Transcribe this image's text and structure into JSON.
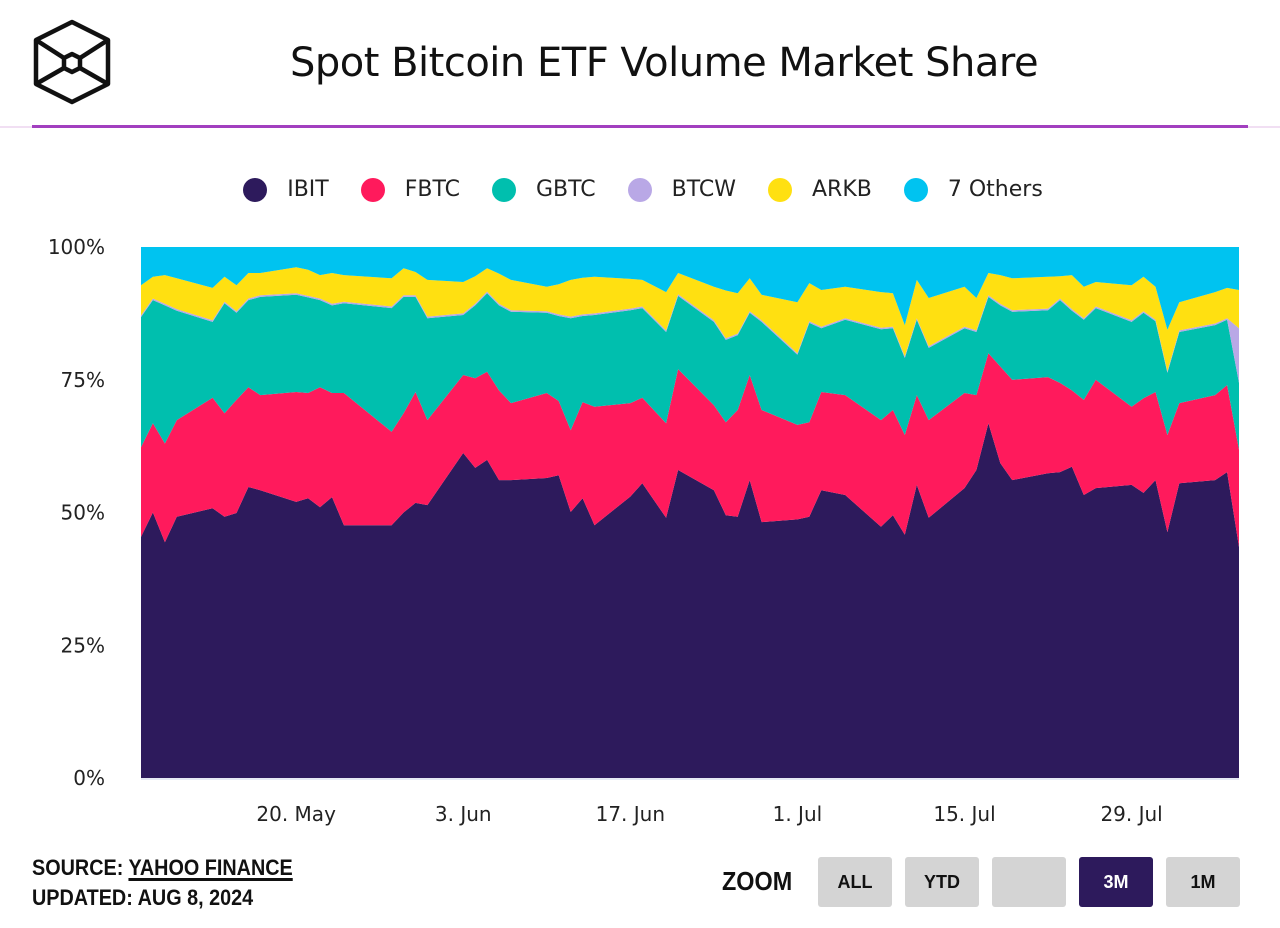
{
  "title": "Spot Bitcoin ETF Volume Market Share",
  "logo": {
    "icon": "cube-hexagon-logo"
  },
  "footer": {
    "source_label": "SOURCE:",
    "source_link": "YAHOO FINANCE",
    "updated": "UPDATED: AUG 8, 2024"
  },
  "zoom": {
    "label": "ZOOM",
    "buttons": [
      {
        "label": "ALL",
        "active": false
      },
      {
        "label": "YTD",
        "active": false
      },
      {
        "label": "",
        "active": false
      },
      {
        "label": "3M",
        "active": true
      },
      {
        "label": "1M",
        "active": false
      }
    ]
  },
  "chart_data": {
    "type": "area",
    "stacking": "percent",
    "title": "Spot Bitcoin ETF Volume Market Share",
    "legend_position": "top",
    "grid": false,
    "ylim": [
      0,
      100
    ],
    "y_ticks": [
      "0%",
      "25%",
      "50%",
      "75%",
      "100%"
    ],
    "x_ticks": [
      {
        "date": "2024-05-20",
        "label": "20. May"
      },
      {
        "date": "2024-06-03",
        "label": "3. Jun"
      },
      {
        "date": "2024-06-17",
        "label": "17. Jun"
      },
      {
        "date": "2024-07-01",
        "label": "1. Jul"
      },
      {
        "date": "2024-07-15",
        "label": "15. Jul"
      },
      {
        "date": "2024-07-29",
        "label": "29. Jul"
      }
    ],
    "x": [
      "2024-05-07",
      "2024-05-08",
      "2024-05-09",
      "2024-05-10",
      "2024-05-13",
      "2024-05-14",
      "2024-05-15",
      "2024-05-16",
      "2024-05-17",
      "2024-05-20",
      "2024-05-21",
      "2024-05-22",
      "2024-05-23",
      "2024-05-24",
      "2024-05-28",
      "2024-05-29",
      "2024-05-30",
      "2024-05-31",
      "2024-06-03",
      "2024-06-04",
      "2024-06-05",
      "2024-06-06",
      "2024-06-07",
      "2024-06-10",
      "2024-06-11",
      "2024-06-12",
      "2024-06-13",
      "2024-06-14",
      "2024-06-17",
      "2024-06-18",
      "2024-06-20",
      "2024-06-21",
      "2024-06-24",
      "2024-06-25",
      "2024-06-26",
      "2024-06-27",
      "2024-06-28",
      "2024-07-01",
      "2024-07-02",
      "2024-07-03",
      "2024-07-05",
      "2024-07-08",
      "2024-07-09",
      "2024-07-10",
      "2024-07-11",
      "2024-07-12",
      "2024-07-15",
      "2024-07-16",
      "2024-07-17",
      "2024-07-18",
      "2024-07-19",
      "2024-07-22",
      "2024-07-23",
      "2024-07-24",
      "2024-07-25",
      "2024-07-26",
      "2024-07-29",
      "2024-07-30",
      "2024-07-31",
      "2024-08-01",
      "2024-08-02",
      "2024-08-05",
      "2024-08-06",
      "2024-08-07"
    ],
    "series": [
      {
        "name": "IBIT",
        "color": "#2d1a5c",
        "values": [
          45.4,
          50,
          44.4,
          49.2,
          50.8,
          49.2,
          49.9,
          54.8,
          54.2,
          52,
          52.7,
          51,
          52.9,
          47.6,
          47.6,
          50,
          51.8,
          51.4,
          61.2,
          58.4,
          59.9,
          56.1,
          56.1,
          56.5,
          57,
          50.1,
          52.7,
          47.6,
          53,
          55.5,
          49,
          58,
          54.2,
          49.5,
          49.2,
          56.1,
          48.2,
          48.7,
          49.2,
          54.2,
          53.3,
          47.3,
          49.5,
          45.8,
          55.2,
          49,
          54.6,
          58,
          66.8,
          59.3,
          56.1,
          57.4,
          57.6,
          58.6,
          53.3,
          54.6,
          55.2,
          53.7,
          56.1,
          46.3,
          55.5,
          56.1,
          57.6,
          43.5
        ]
      },
      {
        "name": "FBTC",
        "color": "#ff1a5c",
        "values": [
          16.9,
          16.8,
          18.6,
          18.2,
          20.8,
          19.5,
          21.3,
          18.8,
          17.9,
          20.7,
          19.8,
          22.6,
          19.6,
          24.9,
          17.6,
          18.7,
          20.9,
          16,
          14.7,
          16.9,
          16.6,
          16.9,
          14.5,
          16,
          14,
          15.4,
          18.1,
          22.3,
          17.6,
          16.1,
          17.8,
          19,
          16,
          17.5,
          20.1,
          19.8,
          21.1,
          17.8,
          17.8,
          18.5,
          18.8,
          20.1,
          19.8,
          18.8,
          16.9,
          18.4,
          17.9,
          14.1,
          13.2,
          18.2,
          18.9,
          18.1,
          16.8,
          14.4,
          17.9,
          20.4,
          14.7,
          17.8,
          16.6,
          18.3,
          15.1,
          16,
          16.4,
          18.3
        ]
      },
      {
        "name": "GBTC",
        "color": "#00bfae",
        "values": [
          24.5,
          23.2,
          26,
          20.6,
          14.3,
          20.7,
          16.4,
          16.4,
          18.5,
          18.3,
          18,
          16.4,
          16.5,
          16.9,
          23.3,
          21.9,
          17.9,
          19.2,
          11.3,
          13.7,
          14.8,
          16,
          17.2,
          15.1,
          16,
          21.1,
          16.2,
          17.3,
          17.5,
          16.9,
          17.2,
          13.8,
          15.7,
          15.5,
          14.1,
          11.7,
          16.6,
          13.2,
          18.7,
          12,
          14.2,
          17.1,
          15.4,
          14.5,
          14.2,
          13.6,
          12.2,
          11.9,
          10.6,
          11.5,
          12.8,
          12.6,
          15.6,
          15,
          15.1,
          13.5,
          16,
          16.1,
          13.3,
          11.7,
          13.4,
          13.2,
          12.3,
          12.6
        ]
      },
      {
        "name": "BTCW",
        "color": "#b9a8e6",
        "values": [
          0.3,
          0.3,
          0.3,
          0.3,
          0.3,
          0.3,
          0.3,
          0.3,
          0.3,
          0.3,
          0.3,
          0.3,
          0.3,
          0.3,
          0.3,
          0.3,
          0.3,
          0.3,
          0.3,
          0.3,
          0.3,
          0.3,
          0.3,
          0.3,
          0.3,
          0.3,
          0.3,
          0.3,
          0.3,
          0.3,
          0.3,
          0.3,
          0.3,
          0.3,
          0.3,
          0.3,
          0.3,
          0.3,
          0.3,
          0.3,
          0.3,
          0.3,
          0.3,
          0.3,
          0.3,
          0.3,
          0.3,
          0.3,
          0.3,
          0.3,
          0.3,
          0.3,
          0.3,
          0.3,
          0.3,
          0.3,
          0.3,
          0.3,
          0.3,
          0.3,
          0.3,
          0.3,
          0.3,
          10.3
        ]
      },
      {
        "name": "ARKB",
        "color": "#ffe011",
        "values": [
          5.7,
          4.1,
          5.4,
          5.8,
          6.1,
          4.7,
          4.9,
          4.8,
          4.2,
          4.9,
          4.9,
          4.4,
          5.8,
          5,
          5.3,
          5.1,
          4.4,
          6.9,
          5.9,
          5.2,
          4.4,
          5.7,
          5.7,
          4.6,
          5.7,
          6.9,
          6.9,
          6.9,
          5.6,
          5,
          7.2,
          4,
          6.3,
          9,
          7.6,
          6.2,
          4.8,
          9.6,
          7.2,
          6.9,
          5.9,
          6.7,
          6.3,
          5.9,
          7.2,
          9.1,
          7.5,
          6.1,
          4.2,
          5.4,
          6,
          6,
          4.2,
          6.4,
          5.9,
          4.6,
          6.6,
          6.5,
          6.2,
          7.8,
          5.3,
          5.9,
          5.7,
          7.2
        ]
      },
      {
        "name": "7 Others",
        "color": "#00c3f0",
        "values": [
          7.2,
          5.6,
          5.3,
          5.9,
          7.7,
          5.6,
          7.2,
          4.9,
          4.9,
          3.8,
          4.3,
          5.3,
          4.9,
          5.3,
          5.9,
          4,
          4.7,
          6.2,
          6.6,
          5.5,
          4,
          5,
          6.2,
          7.5,
          7,
          6.2,
          5.8,
          5.6,
          6,
          6.2,
          8.5,
          4.9,
          7.5,
          8.2,
          8.7,
          5.9,
          9,
          10.4,
          6.8,
          8.1,
          7.5,
          8.5,
          8.7,
          14.7,
          6.2,
          9.6,
          7.5,
          9.6,
          4.9,
          5.3,
          5.9,
          5.6,
          5.5,
          5.3,
          7.5,
          6.6,
          7.2,
          5.6,
          7.5,
          15.6,
          10.4,
          8.5,
          7.7,
          8.1
        ]
      }
    ]
  }
}
